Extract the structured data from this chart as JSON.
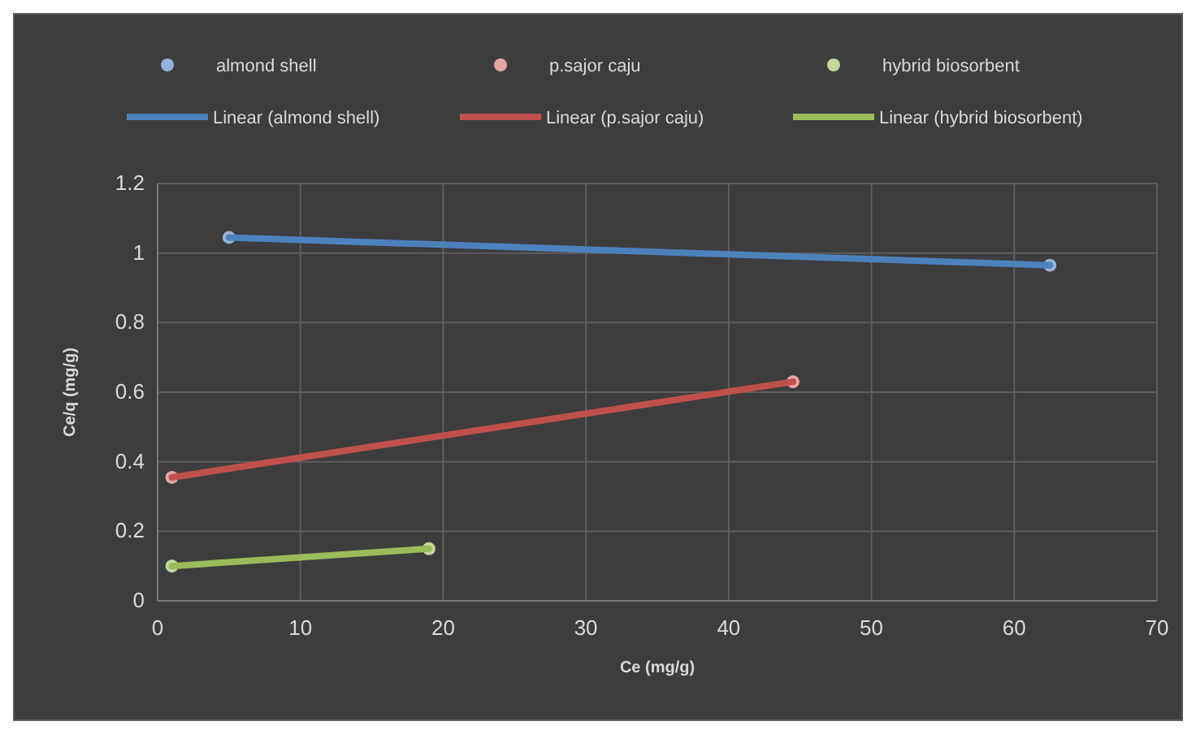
{
  "chart_data": {
    "type": "scatter",
    "xlabel": "Ce (mg/g)",
    "ylabel": "Ce/q (mg/g)",
    "xlim": [
      0,
      70
    ],
    "xticks": [
      0,
      10,
      20,
      30,
      40,
      50,
      60,
      70
    ],
    "ylim": [
      0,
      1.2
    ],
    "yticks": [
      0,
      0.2,
      0.4,
      0.6,
      0.8,
      1,
      1.2
    ],
    "grid": true,
    "legend": "top",
    "marker": "circle",
    "series": [
      {
        "name": "almond shell",
        "color": "#95b3d7",
        "x": [
          5,
          62.5
        ],
        "values": [
          1.045,
          0.965
        ]
      },
      {
        "name": "p.sajor caju",
        "color": "#e6a5a3",
        "x": [
          1,
          44.5
        ],
        "values": [
          0.355,
          0.63
        ]
      },
      {
        "name": "hybrid biosorbent",
        "color": "#c3d69b",
        "x": [
          1,
          19
        ],
        "values": [
          0.1,
          0.15
        ]
      },
      {
        "name": "Linear (almond shell)",
        "type": "line",
        "marker": "none",
        "color": "#4f81bd",
        "x": [
          5,
          62.5
        ],
        "values": [
          1.045,
          0.965
        ]
      },
      {
        "name": "Linear (p.sajor caju)",
        "type": "line",
        "marker": "none",
        "color": "#c0504d",
        "x": [
          1,
          44.5
        ],
        "values": [
          0.355,
          0.63
        ]
      },
      {
        "name": "Linear (hybrid biosorbent)",
        "type": "line",
        "marker": "none",
        "color": "#9bbb59",
        "x": [
          1,
          19
        ],
        "values": [
          0.1,
          0.15
        ]
      }
    ]
  }
}
